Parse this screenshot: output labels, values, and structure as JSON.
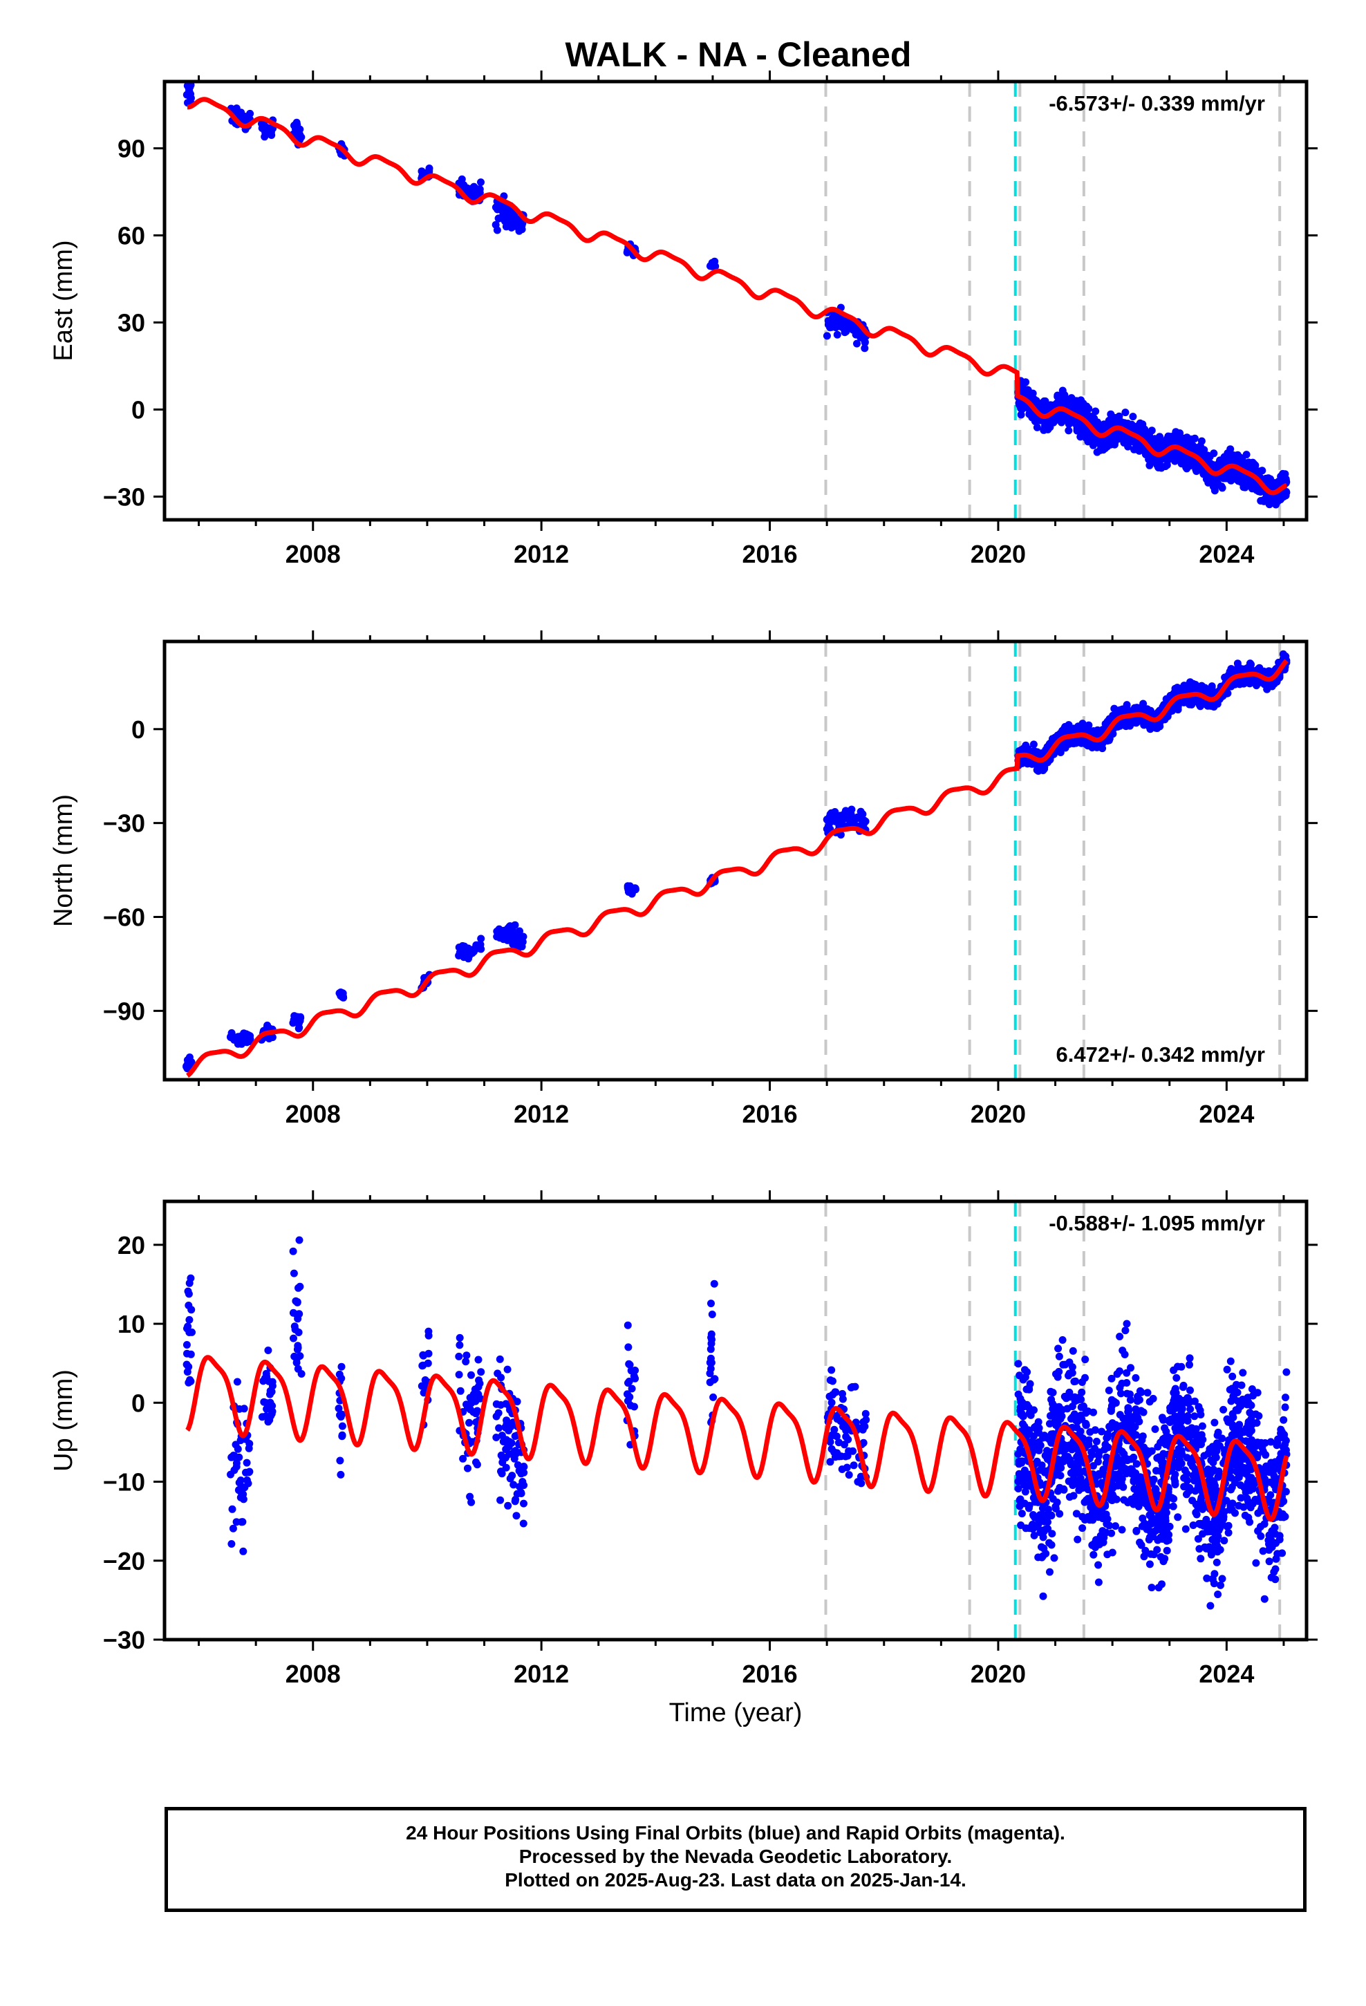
{
  "title": "WALK  - NA - Cleaned",
  "colors": {
    "data": "#0000ff",
    "model": "#ff0000",
    "equipment_change": "#c8c8c8",
    "earthquake": "#00e0e0"
  },
  "footer": {
    "line1": "24 Hour Positions Using Final Orbits (blue) and Rapid Orbits (magenta).",
    "line2": "Processed by the Nevada Geodetic Laboratory.",
    "line3": "Plotted on 2025-Aug-23. Last data on 2025-Jan-14."
  },
  "chart_data": [
    {
      "type": "scatter",
      "ylabel": "East (mm)",
      "xlabel": "",
      "xlim": [
        2005.4,
        2025.4
      ],
      "ylim": [
        -38,
        113
      ],
      "x_ticks": [
        2008,
        2012,
        2016,
        2020,
        2024
      ],
      "y_ticks": [
        90,
        60,
        30,
        0,
        -30
      ],
      "rate_label": "-6.573+/- 0.339 mm/yr",
      "rate_position": "top-right",
      "equipment_change_epochs": [
        2016.98,
        2019.5,
        2020.38,
        2021.5,
        2024.93
      ],
      "earthquake_epochs": [
        2020.3
      ],
      "model": {
        "rate": -6.573,
        "value_at_2005_8": 107,
        "annual_amp": 2.2,
        "semiannual_amp": 0.7,
        "offsets": [
          {
            "epoch": 2020.33,
            "size": -8
          }
        ]
      },
      "data_clusters": [
        {
          "from": 2005.78,
          "to": 2005.88,
          "n": 20,
          "center": 109,
          "spread": 3
        },
        {
          "from": 2006.55,
          "to": 2006.9,
          "n": 40,
          "center": 100,
          "spread": 2
        },
        {
          "from": 2007.1,
          "to": 2007.3,
          "n": 25,
          "center": 97,
          "spread": 2
        },
        {
          "from": 2007.65,
          "to": 2007.8,
          "n": 25,
          "center": 95,
          "spread": 2.5
        },
        {
          "from": 2008.45,
          "to": 2008.55,
          "n": 18,
          "center": 89,
          "spread": 1.5
        },
        {
          "from": 2009.9,
          "to": 2010.05,
          "n": 15,
          "center": 81,
          "spread": 1.5
        },
        {
          "from": 2010.55,
          "to": 2010.95,
          "n": 40,
          "center": 75,
          "spread": 2
        },
        {
          "from": 2011.2,
          "to": 2011.7,
          "n": 60,
          "center": 67,
          "spread": 4
        },
        {
          "from": 2013.5,
          "to": 2013.65,
          "n": 20,
          "center": 55,
          "spread": 1.5
        },
        {
          "from": 2014.95,
          "to": 2015.05,
          "n": 15,
          "center": 50,
          "spread": 1
        },
        {
          "from": 2017.0,
          "to": 2017.7,
          "n": 70,
          "center": 29,
          "spread": 3
        },
        {
          "from": 2020.35,
          "to": 2025.05,
          "n": 1400,
          "center": 0,
          "spread": 2.5
        }
      ]
    },
    {
      "type": "scatter",
      "ylabel": "North (mm)",
      "xlabel": "",
      "xlim": [
        2005.4,
        2025.4
      ],
      "ylim": [
        -112,
        28
      ],
      "x_ticks": [
        2008,
        2012,
        2016,
        2020,
        2024
      ],
      "y_ticks": [
        0,
        -30,
        -60,
        -90
      ],
      "rate_label": "6.472+/- 0.342 mm/yr",
      "rate_position": "bottom-right",
      "equipment_change_epochs": [
        2016.98,
        2019.5,
        2020.38,
        2021.5,
        2024.93
      ],
      "earthquake_epochs": [
        2020.3
      ],
      "model": {
        "rate": 6.472,
        "value_at_2005_8": -108,
        "annual_amp": 2.2,
        "semiannual_amp": 0.6,
        "offsets": [
          {
            "epoch": 2020.33,
            "size": 4
          }
        ]
      },
      "data_clusters": [
        {
          "from": 2005.78,
          "to": 2005.88,
          "n": 18,
          "center": -107,
          "spread": 1.5
        },
        {
          "from": 2006.55,
          "to": 2006.9,
          "n": 40,
          "center": -99,
          "spread": 1.5
        },
        {
          "from": 2007.1,
          "to": 2007.3,
          "n": 25,
          "center": -97,
          "spread": 1.5
        },
        {
          "from": 2007.65,
          "to": 2007.8,
          "n": 20,
          "center": -93,
          "spread": 1.5
        },
        {
          "from": 2008.45,
          "to": 2008.55,
          "n": 15,
          "center": -85,
          "spread": 1
        },
        {
          "from": 2009.9,
          "to": 2010.05,
          "n": 15,
          "center": -81,
          "spread": 1.5
        },
        {
          "from": 2010.55,
          "to": 2010.95,
          "n": 40,
          "center": -71,
          "spread": 1.5
        },
        {
          "from": 2011.2,
          "to": 2011.7,
          "n": 55,
          "center": -66,
          "spread": 2.5
        },
        {
          "from": 2013.5,
          "to": 2013.65,
          "n": 20,
          "center": -51,
          "spread": 1
        },
        {
          "from": 2014.95,
          "to": 2015.05,
          "n": 15,
          "center": -48,
          "spread": 1
        },
        {
          "from": 2017.0,
          "to": 2017.7,
          "n": 60,
          "center": -29,
          "spread": 2.5
        },
        {
          "from": 2020.35,
          "to": 2025.05,
          "n": 1400,
          "center": 0,
          "spread": 1.5
        }
      ]
    },
    {
      "type": "scatter",
      "ylabel": "Up (mm)",
      "xlabel": "Time (year)",
      "xlim": [
        2005.4,
        2025.4
      ],
      "ylim": [
        -30,
        25.5
      ],
      "x_ticks": [
        2008,
        2012,
        2016,
        2020,
        2024
      ],
      "y_ticks": [
        20,
        10,
        0,
        -10,
        -20,
        -30
      ],
      "rate_label": "-0.588+/- 1.095 mm/yr",
      "rate_position": "top-right",
      "equipment_change_epochs": [
        2016.98,
        2019.5,
        2020.38,
        2021.5,
        2024.93
      ],
      "earthquake_epochs": [
        2020.3
      ],
      "model": {
        "rate": -0.588,
        "value_at_2005_8": 2,
        "annual_amp": 4.5,
        "semiannual_amp": 1.2,
        "offsets": []
      },
      "data_clusters": [
        {
          "from": 2005.78,
          "to": 2005.88,
          "n": 20,
          "center": 8,
          "spread": 6
        },
        {
          "from": 2006.55,
          "to": 2006.9,
          "n": 50,
          "center": -8,
          "spread": 7
        },
        {
          "from": 2007.1,
          "to": 2007.3,
          "n": 25,
          "center": 1,
          "spread": 5
        },
        {
          "from": 2007.65,
          "to": 2007.8,
          "n": 25,
          "center": 8,
          "spread": 6
        },
        {
          "from": 2008.45,
          "to": 2008.55,
          "n": 15,
          "center": -2,
          "spread": 6
        },
        {
          "from": 2009.9,
          "to": 2010.05,
          "n": 15,
          "center": 3,
          "spread": 5
        },
        {
          "from": 2010.55,
          "to": 2010.95,
          "n": 50,
          "center": -2,
          "spread": 6
        },
        {
          "from": 2011.2,
          "to": 2011.7,
          "n": 80,
          "center": -5,
          "spread": 6
        },
        {
          "from": 2013.5,
          "to": 2013.65,
          "n": 20,
          "center": 2,
          "spread": 6
        },
        {
          "from": 2014.95,
          "to": 2015.05,
          "n": 20,
          "center": 6,
          "spread": 6
        },
        {
          "from": 2017.0,
          "to": 2017.7,
          "n": 80,
          "center": -3,
          "spread": 5
        },
        {
          "from": 2020.35,
          "to": 2025.05,
          "n": 1500,
          "center": 1,
          "spread": 5
        }
      ]
    }
  ]
}
